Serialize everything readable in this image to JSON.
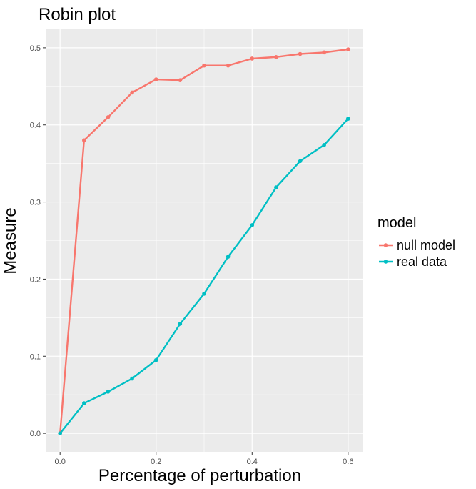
{
  "chart_data": {
    "type": "line",
    "title": "Robin plot",
    "xlabel": "Percentage of perturbation",
    "ylabel": "Measure",
    "xlim": [
      -0.03,
      0.63
    ],
    "ylim": [
      -0.024,
      0.524
    ],
    "x_ticks": [
      0.0,
      0.2,
      0.4,
      0.6
    ],
    "x_tick_labels": [
      "0.0",
      "0.2",
      "0.4",
      "0.6"
    ],
    "y_ticks": [
      0.0,
      0.1,
      0.2,
      0.3,
      0.4,
      0.5
    ],
    "y_tick_labels": [
      "0.0",
      "0.1",
      "0.2",
      "0.3",
      "0.4",
      "0.5"
    ],
    "grid": true,
    "legend": {
      "title": "model",
      "position": "right"
    },
    "x": [
      0.0,
      0.05,
      0.1,
      0.15,
      0.2,
      0.25,
      0.3,
      0.35,
      0.4,
      0.45,
      0.5,
      0.55,
      0.6
    ],
    "series": [
      {
        "name": "null model",
        "color": "#F8766D",
        "values": [
          0.0,
          0.38,
          0.41,
          0.442,
          0.459,
          0.458,
          0.477,
          0.477,
          0.486,
          0.488,
          0.492,
          0.494,
          0.498
        ]
      },
      {
        "name": "real data",
        "color": "#00BFC4",
        "values": [
          0.0,
          0.039,
          0.054,
          0.071,
          0.095,
          0.142,
          0.181,
          0.229,
          0.27,
          0.319,
          0.353,
          0.374,
          0.408
        ]
      }
    ]
  }
}
